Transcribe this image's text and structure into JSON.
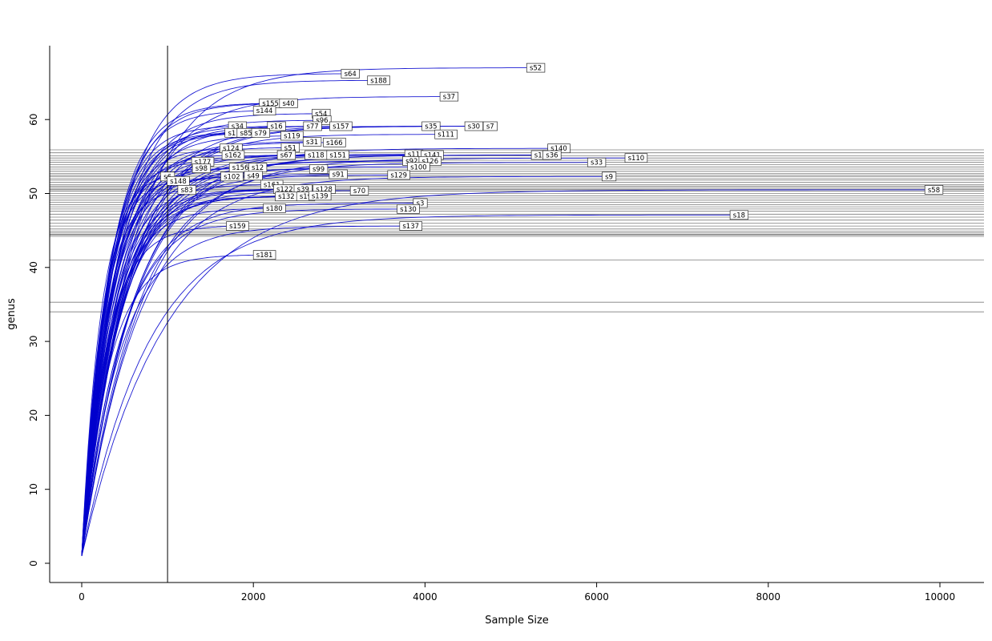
{
  "chart_data": {
    "type": "line",
    "subtype": "rarefaction-curves",
    "title": "",
    "xlabel": "Sample Size",
    "ylabel": "genus",
    "xlim": [
      0,
      10530
    ],
    "ylim": [
      0,
      70
    ],
    "xticks": [
      0,
      2000,
      4000,
      6000,
      8000,
      10000
    ],
    "yticks": [
      0,
      10,
      20,
      30,
      40,
      50,
      60
    ],
    "grid": false,
    "legend": false,
    "curve_color": "#0000cd",
    "hline_color": "#555555",
    "vline_x": 1000,
    "hlines": [
      55.9,
      55.5,
      55.1,
      54.8,
      54.5,
      54.2,
      53.9,
      53.6,
      53.3,
      53.0,
      52.7,
      52.5,
      52.3,
      52.0,
      51.8,
      51.5,
      51.2,
      51.0,
      50.8,
      50.6,
      50.5,
      50.3,
      50.0,
      49.7,
      49.4,
      49.1,
      48.8,
      48.5,
      48.2,
      47.9,
      47.6,
      47.2,
      46.8,
      46.4,
      46.0,
      45.6,
      45.2,
      44.9,
      44.7,
      44.5,
      44.4,
      44.2,
      41.0,
      35.3,
      34.0
    ],
    "series": [
      {
        "label": "s52",
        "x_end": 5290,
        "y_end": 67.0
      },
      {
        "label": "s64",
        "x_end": 3130,
        "y_end": 66.2
      },
      {
        "label": "s188",
        "x_end": 3460,
        "y_end": 65.3
      },
      {
        "label": "s37",
        "x_end": 4280,
        "y_end": 63.1
      },
      {
        "label": "s155",
        "x_end": 2200,
        "y_end": 62.2
      },
      {
        "label": "s40",
        "x_end": 2410,
        "y_end": 62.2
      },
      {
        "label": "s144",
        "x_end": 2130,
        "y_end": 61.2
      },
      {
        "label": "s54",
        "x_end": 2790,
        "y_end": 60.8
      },
      {
        "label": "s96",
        "x_end": 2800,
        "y_end": 59.9
      },
      {
        "label": "s34",
        "x_end": 1815,
        "y_end": 59.1
      },
      {
        "label": "s16",
        "x_end": 2270,
        "y_end": 59.1
      },
      {
        "label": "s77",
        "x_end": 2690,
        "y_end": 59.1
      },
      {
        "label": "s157",
        "x_end": 3020,
        "y_end": 59.1
      },
      {
        "label": "s35",
        "x_end": 4070,
        "y_end": 59.1
      },
      {
        "label": "s30",
        "x_end": 4570,
        "y_end": 59.1
      },
      {
        "label": "s7",
        "x_end": 4760,
        "y_end": 59.1
      },
      {
        "label": "s1",
        "x_end": 1750,
        "y_end": 58.2
      },
      {
        "label": "s85",
        "x_end": 1915,
        "y_end": 58.2
      },
      {
        "label": "s79",
        "x_end": 2085,
        "y_end": 58.2
      },
      {
        "label": "s119",
        "x_end": 2450,
        "y_end": 57.8
      },
      {
        "label": "s111",
        "x_end": 4245,
        "y_end": 58.0
      },
      {
        "label": "s31",
        "x_end": 2685,
        "y_end": 57.0
      },
      {
        "label": "s166",
        "x_end": 2945,
        "y_end": 56.9
      },
      {
        "label": "s124",
        "x_end": 1740,
        "y_end": 56.1
      },
      {
        "label": "s51",
        "x_end": 2430,
        "y_end": 56.2
      },
      {
        "label": "s140",
        "x_end": 5560,
        "y_end": 56.1
      },
      {
        "label": "s162",
        "x_end": 1765,
        "y_end": 55.2
      },
      {
        "label": "s67",
        "x_end": 2385,
        "y_end": 55.2
      },
      {
        "label": "s118",
        "x_end": 2730,
        "y_end": 55.2
      },
      {
        "label": "s151",
        "x_end": 2985,
        "y_end": 55.2
      },
      {
        "label": "s11",
        "x_end": 3870,
        "y_end": 55.3
      },
      {
        "label": "s141",
        "x_end": 4085,
        "y_end": 55.2
      },
      {
        "label": "s15",
        "x_end": 5345,
        "y_end": 55.2
      },
      {
        "label": "s36",
        "x_end": 5480,
        "y_end": 55.2
      },
      {
        "label": "s110",
        "x_end": 6460,
        "y_end": 54.8
      },
      {
        "label": "s177",
        "x_end": 1410,
        "y_end": 54.3
      },
      {
        "label": "s92",
        "x_end": 3845,
        "y_end": 54.4
      },
      {
        "label": "s126",
        "x_end": 4060,
        "y_end": 54.4
      },
      {
        "label": "s33",
        "x_end": 6000,
        "y_end": 54.2
      },
      {
        "label": "s98",
        "x_end": 1395,
        "y_end": 53.4
      },
      {
        "label": "s156",
        "x_end": 1850,
        "y_end": 53.5
      },
      {
        "label": "s12",
        "x_end": 2050,
        "y_end": 53.5
      },
      {
        "label": "s99",
        "x_end": 2760,
        "y_end": 53.3
      },
      {
        "label": "s100",
        "x_end": 3925,
        "y_end": 53.6
      },
      {
        "label": "s6",
        "x_end": 1000,
        "y_end": 52.3
      },
      {
        "label": "s102",
        "x_end": 1750,
        "y_end": 52.3
      },
      {
        "label": "s49",
        "x_end": 2000,
        "y_end": 52.4
      },
      {
        "label": "s91",
        "x_end": 2990,
        "y_end": 52.6
      },
      {
        "label": "s129",
        "x_end": 3695,
        "y_end": 52.5
      },
      {
        "label": "s9",
        "x_end": 6145,
        "y_end": 52.3
      },
      {
        "label": "s148",
        "x_end": 1125,
        "y_end": 51.7
      },
      {
        "label": "s161",
        "x_end": 2215,
        "y_end": 51.2
      },
      {
        "label": "s83",
        "x_end": 1225,
        "y_end": 50.5
      },
      {
        "label": "s122",
        "x_end": 2365,
        "y_end": 50.6
      },
      {
        "label": "s39",
        "x_end": 2580,
        "y_end": 50.6
      },
      {
        "label": "s128",
        "x_end": 2825,
        "y_end": 50.6
      },
      {
        "label": "s70",
        "x_end": 3235,
        "y_end": 50.4
      },
      {
        "label": "s58",
        "x_end": 9930,
        "y_end": 50.5
      },
      {
        "label": "s132",
        "x_end": 2385,
        "y_end": 49.6
      },
      {
        "label": "s19",
        "x_end": 2610,
        "y_end": 49.6
      },
      {
        "label": "s139",
        "x_end": 2775,
        "y_end": 49.7
      },
      {
        "label": "s3",
        "x_end": 3945,
        "y_end": 48.7
      },
      {
        "label": "s180",
        "x_end": 2245,
        "y_end": 48.0
      },
      {
        "label": "s130",
        "x_end": 3805,
        "y_end": 47.9
      },
      {
        "label": "s18",
        "x_end": 7660,
        "y_end": 47.1
      },
      {
        "label": "s159",
        "x_end": 1815,
        "y_end": 45.6
      },
      {
        "label": "s137",
        "x_end": 3835,
        "y_end": 45.6
      },
      {
        "label": "s181",
        "x_end": 2130,
        "y_end": 41.7
      }
    ]
  }
}
